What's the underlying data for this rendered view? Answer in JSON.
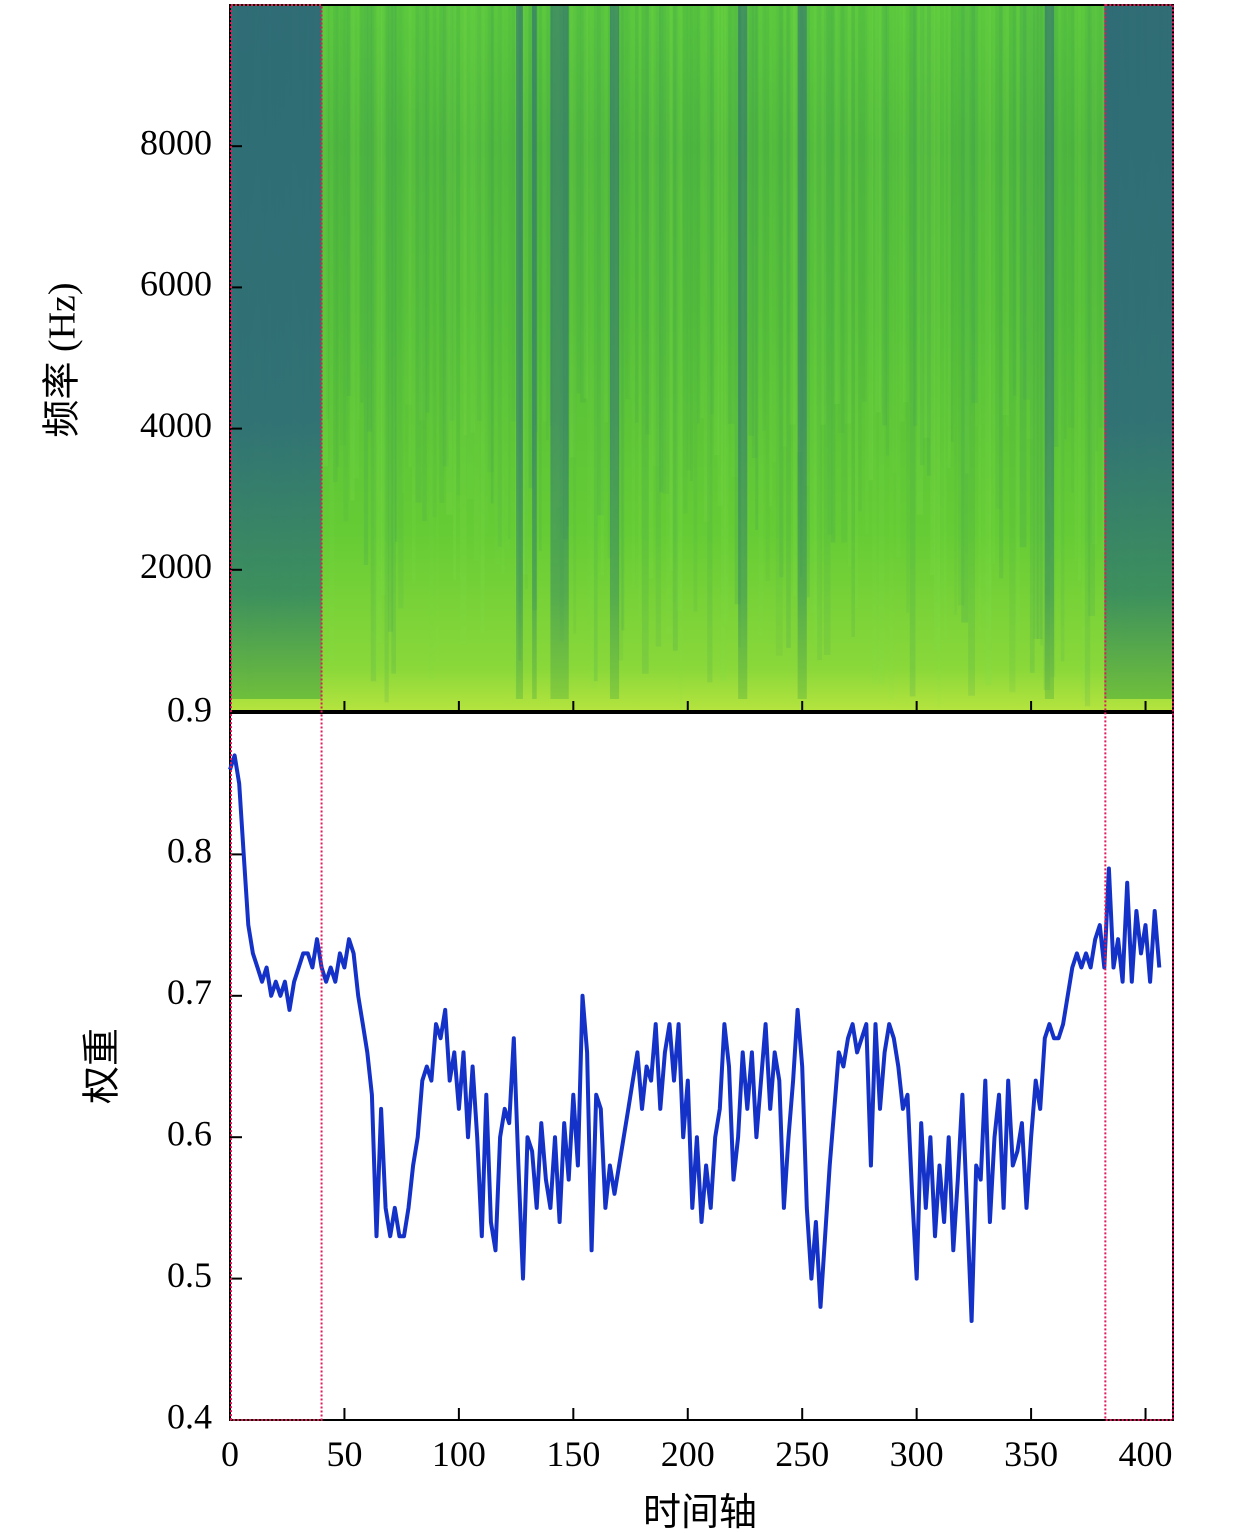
{
  "colors": {
    "spec_dark": "#2f6b78",
    "spec_mid": "#3f9a5a",
    "spec_green": "#58c23a",
    "spec_bright": "#a7dd3c",
    "weight_line": "#1432c8",
    "marker": "#e0185a",
    "axis": "#000000"
  },
  "chart_data": [
    {
      "type": "heatmap",
      "name": "spectrogram",
      "ylabel": "频率 (Hz)",
      "y_ticks": [
        "2000",
        "4000",
        "6000",
        "8000"
      ],
      "x_ticks": [
        0,
        50,
        100,
        150,
        200,
        250,
        300,
        350,
        400
      ],
      "xlim": [
        0,
        412
      ],
      "ylim": [
        0,
        10000
      ],
      "colormap": "viridis (green/teal tones)",
      "dark_bands": [
        [
          0,
          40
        ],
        [
          125,
          128
        ],
        [
          132,
          134
        ],
        [
          140,
          148
        ],
        [
          166,
          170
        ],
        [
          222,
          226
        ],
        [
          248,
          252
        ],
        [
          356,
          360
        ],
        [
          382,
          412
        ]
      ],
      "highlight_regions": [
        [
          0,
          40
        ],
        [
          382,
          412
        ]
      ]
    },
    {
      "type": "line",
      "name": "attention-weight",
      "xlabel": "时间轴",
      "ylabel": "权重",
      "xlim": [
        0,
        412
      ],
      "ylim": [
        0.4,
        0.9
      ],
      "y_ticks": [
        "0.4",
        "0.5",
        "0.6",
        "0.7",
        "0.8",
        "0.9"
      ],
      "x_ticks": [
        "0",
        "50",
        "100",
        "150",
        "200",
        "250",
        "300",
        "350",
        "400"
      ],
      "highlight_regions": [
        [
          0,
          40
        ],
        [
          382,
          412
        ]
      ],
      "series": [
        {
          "points": [
            [
              0,
              0.86
            ],
            [
              2,
              0.87
            ],
            [
              4,
              0.85
            ],
            [
              6,
              0.8
            ],
            [
              8,
              0.75
            ],
            [
              10,
              0.73
            ],
            [
              12,
              0.72
            ],
            [
              14,
              0.71
            ],
            [
              16,
              0.72
            ],
            [
              18,
              0.7
            ],
            [
              20,
              0.71
            ],
            [
              22,
              0.7
            ],
            [
              24,
              0.71
            ],
            [
              26,
              0.69
            ],
            [
              28,
              0.71
            ],
            [
              30,
              0.72
            ],
            [
              32,
              0.73
            ],
            [
              34,
              0.73
            ],
            [
              36,
              0.72
            ],
            [
              38,
              0.74
            ],
            [
              40,
              0.72
            ],
            [
              42,
              0.71
            ],
            [
              44,
              0.72
            ],
            [
              46,
              0.71
            ],
            [
              48,
              0.73
            ],
            [
              50,
              0.72
            ],
            [
              52,
              0.74
            ],
            [
              54,
              0.73
            ],
            [
              56,
              0.7
            ],
            [
              58,
              0.68
            ],
            [
              60,
              0.66
            ],
            [
              62,
              0.63
            ],
            [
              64,
              0.53
            ],
            [
              66,
              0.62
            ],
            [
              68,
              0.55
            ],
            [
              70,
              0.53
            ],
            [
              72,
              0.55
            ],
            [
              74,
              0.53
            ],
            [
              76,
              0.53
            ],
            [
              78,
              0.55
            ],
            [
              80,
              0.58
            ],
            [
              82,
              0.6
            ],
            [
              84,
              0.64
            ],
            [
              86,
              0.65
            ],
            [
              88,
              0.64
            ],
            [
              90,
              0.68
            ],
            [
              92,
              0.67
            ],
            [
              94,
              0.69
            ],
            [
              96,
              0.64
            ],
            [
              98,
              0.66
            ],
            [
              100,
              0.62
            ],
            [
              102,
              0.66
            ],
            [
              104,
              0.6
            ],
            [
              106,
              0.65
            ],
            [
              108,
              0.6
            ],
            [
              110,
              0.53
            ],
            [
              112,
              0.63
            ],
            [
              114,
              0.54
            ],
            [
              116,
              0.52
            ],
            [
              118,
              0.6
            ],
            [
              120,
              0.62
            ],
            [
              122,
              0.61
            ],
            [
              124,
              0.67
            ],
            [
              126,
              0.58
            ],
            [
              128,
              0.5
            ],
            [
              130,
              0.6
            ],
            [
              132,
              0.59
            ],
            [
              134,
              0.55
            ],
            [
              136,
              0.61
            ],
            [
              138,
              0.57
            ],
            [
              140,
              0.55
            ],
            [
              142,
              0.6
            ],
            [
              144,
              0.54
            ],
            [
              146,
              0.61
            ],
            [
              148,
              0.57
            ],
            [
              150,
              0.63
            ],
            [
              152,
              0.58
            ],
            [
              154,
              0.7
            ],
            [
              156,
              0.66
            ],
            [
              158,
              0.52
            ],
            [
              160,
              0.63
            ],
            [
              162,
              0.62
            ],
            [
              164,
              0.55
            ],
            [
              166,
              0.58
            ],
            [
              168,
              0.56
            ],
            [
              170,
              0.58
            ],
            [
              172,
              0.6
            ],
            [
              174,
              0.62
            ],
            [
              176,
              0.64
            ],
            [
              178,
              0.66
            ],
            [
              180,
              0.62
            ],
            [
              182,
              0.65
            ],
            [
              184,
              0.64
            ],
            [
              186,
              0.68
            ],
            [
              188,
              0.62
            ],
            [
              190,
              0.66
            ],
            [
              192,
              0.68
            ],
            [
              194,
              0.64
            ],
            [
              196,
              0.68
            ],
            [
              198,
              0.6
            ],
            [
              200,
              0.64
            ],
            [
              202,
              0.55
            ],
            [
              204,
              0.6
            ],
            [
              206,
              0.54
            ],
            [
              208,
              0.58
            ],
            [
              210,
              0.55
            ],
            [
              212,
              0.6
            ],
            [
              214,
              0.62
            ],
            [
              216,
              0.68
            ],
            [
              218,
              0.65
            ],
            [
              220,
              0.57
            ],
            [
              222,
              0.6
            ],
            [
              224,
              0.66
            ],
            [
              226,
              0.62
            ],
            [
              228,
              0.66
            ],
            [
              230,
              0.6
            ],
            [
              232,
              0.64
            ],
            [
              234,
              0.68
            ],
            [
              236,
              0.62
            ],
            [
              238,
              0.66
            ],
            [
              240,
              0.64
            ],
            [
              242,
              0.55
            ],
            [
              244,
              0.6
            ],
            [
              246,
              0.64
            ],
            [
              248,
              0.69
            ],
            [
              250,
              0.65
            ],
            [
              252,
              0.55
            ],
            [
              254,
              0.5
            ],
            [
              256,
              0.54
            ],
            [
              258,
              0.48
            ],
            [
              260,
              0.53
            ],
            [
              262,
              0.58
            ],
            [
              264,
              0.62
            ],
            [
              266,
              0.66
            ],
            [
              268,
              0.65
            ],
            [
              270,
              0.67
            ],
            [
              272,
              0.68
            ],
            [
              274,
              0.66
            ],
            [
              276,
              0.67
            ],
            [
              278,
              0.68
            ],
            [
              280,
              0.58
            ],
            [
              282,
              0.68
            ],
            [
              284,
              0.62
            ],
            [
              286,
              0.66
            ],
            [
              288,
              0.68
            ],
            [
              290,
              0.67
            ],
            [
              292,
              0.65
            ],
            [
              294,
              0.62
            ],
            [
              296,
              0.63
            ],
            [
              298,
              0.56
            ],
            [
              300,
              0.5
            ],
            [
              302,
              0.61
            ],
            [
              304,
              0.55
            ],
            [
              306,
              0.6
            ],
            [
              308,
              0.53
            ],
            [
              310,
              0.58
            ],
            [
              312,
              0.54
            ],
            [
              314,
              0.6
            ],
            [
              316,
              0.52
            ],
            [
              318,
              0.57
            ],
            [
              320,
              0.63
            ],
            [
              322,
              0.55
            ],
            [
              324,
              0.47
            ],
            [
              326,
              0.58
            ],
            [
              328,
              0.57
            ],
            [
              330,
              0.64
            ],
            [
              332,
              0.54
            ],
            [
              334,
              0.6
            ],
            [
              336,
              0.63
            ],
            [
              338,
              0.55
            ],
            [
              340,
              0.64
            ],
            [
              342,
              0.58
            ],
            [
              344,
              0.59
            ],
            [
              346,
              0.61
            ],
            [
              348,
              0.55
            ],
            [
              350,
              0.6
            ],
            [
              352,
              0.64
            ],
            [
              354,
              0.62
            ],
            [
              356,
              0.67
            ],
            [
              358,
              0.68
            ],
            [
              360,
              0.67
            ],
            [
              362,
              0.67
            ],
            [
              364,
              0.68
            ],
            [
              366,
              0.7
            ],
            [
              368,
              0.72
            ],
            [
              370,
              0.73
            ],
            [
              372,
              0.72
            ],
            [
              374,
              0.73
            ],
            [
              376,
              0.72
            ],
            [
              378,
              0.74
            ],
            [
              380,
              0.75
            ],
            [
              382,
              0.72
            ],
            [
              384,
              0.79
            ],
            [
              386,
              0.72
            ],
            [
              388,
              0.74
            ],
            [
              390,
              0.71
            ],
            [
              392,
              0.78
            ],
            [
              394,
              0.71
            ],
            [
              396,
              0.76
            ],
            [
              398,
              0.73
            ],
            [
              400,
              0.75
            ],
            [
              402,
              0.71
            ],
            [
              404,
              0.76
            ],
            [
              406,
              0.72
            ]
          ]
        }
      ]
    }
  ]
}
